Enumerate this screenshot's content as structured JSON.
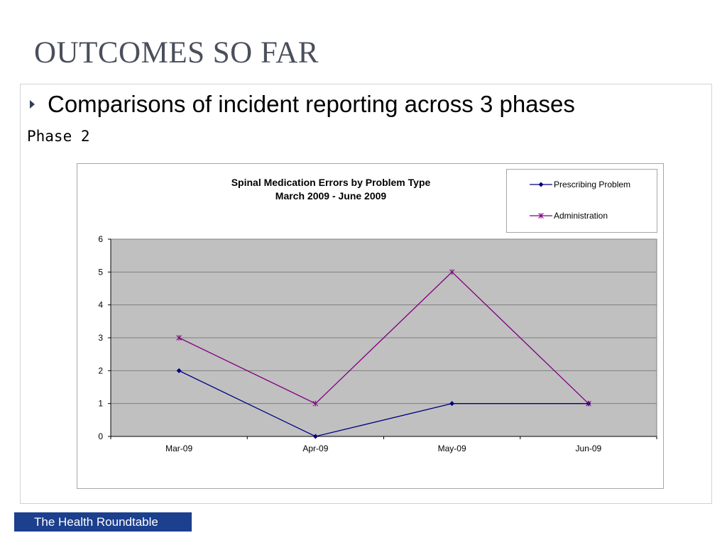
{
  "slide": {
    "title": "OUTCOMES SO FAR",
    "bullet": "Comparisons of incident reporting across 3 phases",
    "phase_label": "Phase 2",
    "footer": "The Health Roundtable"
  },
  "colors": {
    "plot_bg": "#c0c0c0",
    "gridline": "#7f7f7f",
    "footer_bg": "#1c3f8e",
    "series_prescribing": "#000080",
    "series_administration": "#800080"
  },
  "chart_data": {
    "type": "line",
    "title_lines": [
      "Spinal Medication Errors by Problem Type",
      "March 2009 - June 2009"
    ],
    "categories": [
      "Mar-09",
      "Apr-09",
      "May-09",
      "Jun-09"
    ],
    "series": [
      {
        "name": "Prescribing Problem",
        "values": [
          2,
          0,
          1,
          1
        ],
        "marker": "diamond",
        "color": "#000080"
      },
      {
        "name": "Administration",
        "values": [
          3,
          1,
          5,
          1
        ],
        "marker": "star",
        "color": "#800080"
      }
    ],
    "ylim": [
      0,
      6
    ],
    "yticks": [
      0,
      1,
      2,
      3,
      4,
      5,
      6
    ],
    "grid": true,
    "legend_position": "top-right",
    "xlabel": "",
    "ylabel": ""
  }
}
